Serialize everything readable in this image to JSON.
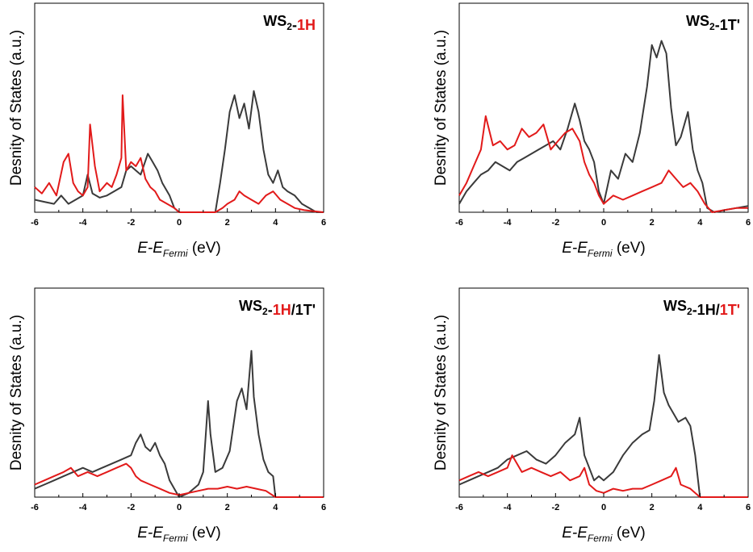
{
  "chart_data": [
    {
      "type": "line",
      "title_parts": [
        {
          "text": "WS",
          "color": "#000000"
        },
        {
          "text": "2",
          "color": "#000000",
          "sub": true
        },
        {
          "text": "-",
          "color": "#000000"
        },
        {
          "text": "1H",
          "color": "#e21a1a"
        }
      ],
      "xlabel": "E-E",
      "xlabel_sub": "Fermi",
      "xlabel_unit": "(eV)",
      "ylabel": "Desnity of States (a.u.)",
      "xlim": [
        -6,
        6
      ],
      "ylim": [
        0,
        100
      ],
      "xticks": [
        "-6",
        "-4",
        "-2",
        "0",
        "2",
        "4",
        "6"
      ],
      "series": [
        {
          "color": "#3a3a3a",
          "x": [
            -6,
            -5.6,
            -5.2,
            -4.9,
            -4.6,
            -4.3,
            -4.0,
            -3.8,
            -3.6,
            -3.3,
            -3.0,
            -2.7,
            -2.4,
            -2.2,
            -2.0,
            -1.6,
            -1.3,
            -1.1,
            -0.9,
            -0.7,
            -0.4,
            -0.2,
            0,
            1.5,
            1.7,
            1.9,
            2.1,
            2.3,
            2.5,
            2.7,
            2.9,
            3.1,
            3.3,
            3.5,
            3.7,
            3.9,
            4.1,
            4.3,
            4.5,
            4.8,
            5.1,
            5.4,
            5.7,
            6
          ],
          "y": [
            6,
            5,
            4,
            8,
            4,
            6,
            8,
            18,
            9,
            7,
            8,
            10,
            12,
            20,
            22,
            18,
            28,
            24,
            20,
            14,
            8,
            2,
            0,
            0,
            14,
            30,
            48,
            56,
            45,
            52,
            40,
            58,
            48,
            30,
            18,
            14,
            20,
            12,
            10,
            8,
            4,
            2,
            0,
            0
          ]
        },
        {
          "color": "#e21a1a",
          "x": [
            -6,
            -5.7,
            -5.4,
            -5.1,
            -4.8,
            -4.6,
            -4.4,
            -4.2,
            -4.0,
            -3.8,
            -3.7,
            -3.5,
            -3.3,
            -3.0,
            -2.8,
            -2.6,
            -2.4,
            -2.35,
            -2.2,
            -2.0,
            -1.8,
            -1.6,
            -1.4,
            -1.2,
            -1.0,
            -0.8,
            -0.5,
            -0.2,
            0,
            1.5,
            1.8,
            2.0,
            2.3,
            2.5,
            2.7,
            3.0,
            3.3,
            3.6,
            3.9,
            4.2,
            4.5,
            4.8,
            5.2,
            6
          ],
          "y": [
            12,
            9,
            14,
            8,
            24,
            28,
            14,
            10,
            8,
            12,
            42,
            22,
            10,
            14,
            12,
            18,
            26,
            56,
            20,
            24,
            22,
            26,
            16,
            12,
            10,
            6,
            4,
            2,
            0,
            0,
            2,
            4,
            6,
            10,
            8,
            6,
            4,
            8,
            10,
            6,
            4,
            2,
            1,
            0
          ]
        }
      ]
    },
    {
      "type": "line",
      "title_parts": [
        {
          "text": "WS",
          "color": "#000000"
        },
        {
          "text": "2",
          "color": "#000000",
          "sub": true
        },
        {
          "text": "-1T'",
          "color": "#000000"
        }
      ],
      "xlabel": "E-E",
      "xlabel_sub": "Fermi",
      "xlabel_unit": "(eV)",
      "ylabel": "Desnity of States (a.u.)",
      "xlim": [
        -6,
        6
      ],
      "ylim": [
        0,
        100
      ],
      "xticks": [
        "-6",
        "-4",
        "-2",
        "0",
        "2",
        "4",
        "6"
      ],
      "series": [
        {
          "color": "#3a3a3a",
          "x": [
            -6,
            -5.7,
            -5.4,
            -5.1,
            -4.8,
            -4.5,
            -4.2,
            -3.9,
            -3.6,
            -3.3,
            -3.0,
            -2.7,
            -2.4,
            -2.1,
            -1.8,
            -1.5,
            -1.2,
            -1.0,
            -0.8,
            -0.6,
            -0.4,
            -0.2,
            0,
            0.3,
            0.6,
            0.9,
            1.2,
            1.5,
            1.8,
            2.0,
            2.2,
            2.4,
            2.6,
            2.8,
            3.0,
            3.2,
            3.5,
            3.7,
            3.9,
            4.1,
            4.3,
            4.6,
            5.0,
            5.5,
            6
          ],
          "y": [
            4,
            10,
            14,
            18,
            20,
            24,
            22,
            20,
            24,
            26,
            28,
            30,
            32,
            34,
            30,
            40,
            52,
            44,
            34,
            30,
            24,
            10,
            4,
            20,
            16,
            28,
            24,
            38,
            60,
            80,
            74,
            82,
            76,
            50,
            32,
            36,
            48,
            30,
            20,
            14,
            2,
            0,
            1,
            2,
            3
          ]
        },
        {
          "color": "#e21a1a",
          "x": [
            -6,
            -5.7,
            -5.4,
            -5.1,
            -4.9,
            -4.6,
            -4.3,
            -4.0,
            -3.7,
            -3.4,
            -3.1,
            -2.8,
            -2.5,
            -2.2,
            -1.9,
            -1.6,
            -1.3,
            -1.0,
            -0.8,
            -0.6,
            -0.4,
            -0.2,
            0,
            0.4,
            0.8,
            1.2,
            1.6,
            2.0,
            2.4,
            2.7,
            3.0,
            3.3,
            3.6,
            3.9,
            4.2,
            4.5,
            5.0,
            5.5,
            6
          ],
          "y": [
            8,
            14,
            22,
            30,
            46,
            32,
            34,
            30,
            32,
            40,
            36,
            38,
            42,
            30,
            34,
            38,
            40,
            34,
            24,
            18,
            14,
            8,
            4,
            8,
            6,
            8,
            10,
            12,
            14,
            20,
            16,
            12,
            14,
            10,
            4,
            0,
            1,
            2,
            2
          ]
        }
      ]
    },
    {
      "type": "line",
      "title_parts": [
        {
          "text": "WS",
          "color": "#000000"
        },
        {
          "text": "2",
          "color": "#000000",
          "sub": true
        },
        {
          "text": "-",
          "color": "#000000"
        },
        {
          "text": "1H",
          "color": "#e21a1a"
        },
        {
          "text": "/1T'",
          "color": "#000000"
        }
      ],
      "xlabel": "E-E",
      "xlabel_sub": "Fermi",
      "xlabel_unit": "(eV)",
      "ylabel": "Desnity of States (a.u.)",
      "xlim": [
        -6,
        6
      ],
      "ylim": [
        0,
        100
      ],
      "xticks": [
        "-6",
        "-4",
        "-2",
        "0",
        "2",
        "4",
        "6"
      ],
      "series": [
        {
          "color": "#3a3a3a",
          "x": [
            -6,
            -5.6,
            -5.2,
            -4.8,
            -4.4,
            -4.0,
            -3.6,
            -3.2,
            -2.8,
            -2.4,
            -2.0,
            -1.8,
            -1.6,
            -1.4,
            -1.2,
            -1.0,
            -0.8,
            -0.6,
            -0.4,
            -0.2,
            0,
            0.4,
            0.8,
            1.0,
            1.2,
            1.3,
            1.5,
            1.8,
            2.1,
            2.4,
            2.6,
            2.8,
            3.0,
            3.1,
            3.3,
            3.5,
            3.7,
            3.9,
            4.0,
            4.5,
            5.0,
            5.5,
            6
          ],
          "y": [
            4,
            6,
            8,
            10,
            12,
            14,
            12,
            14,
            16,
            18,
            20,
            26,
            30,
            24,
            22,
            26,
            20,
            16,
            8,
            4,
            0,
            2,
            6,
            12,
            46,
            30,
            12,
            14,
            22,
            46,
            52,
            42,
            70,
            48,
            30,
            18,
            12,
            10,
            0,
            0,
            0,
            0,
            0
          ]
        },
        {
          "color": "#e21a1a",
          "x": [
            -6,
            -5.6,
            -5.2,
            -4.8,
            -4.5,
            -4.2,
            -3.8,
            -3.4,
            -3.0,
            -2.6,
            -2.2,
            -2.0,
            -1.8,
            -1.6,
            -1.2,
            -0.8,
            -0.4,
            0,
            0.4,
            0.8,
            1.2,
            1.6,
            2.0,
            2.4,
            2.8,
            3.2,
            3.6,
            4.0,
            4.5,
            5.0,
            6
          ],
          "y": [
            6,
            8,
            10,
            12,
            14,
            10,
            12,
            10,
            12,
            14,
            16,
            14,
            10,
            8,
            6,
            4,
            2,
            1,
            2,
            3,
            4,
            4,
            5,
            4,
            5,
            4,
            3,
            0,
            0,
            0,
            0
          ]
        }
      ]
    },
    {
      "type": "line",
      "title_parts": [
        {
          "text": "WS",
          "color": "#000000"
        },
        {
          "text": "2",
          "color": "#000000",
          "sub": true
        },
        {
          "text": "-1H/",
          "color": "#000000"
        },
        {
          "text": "1T'",
          "color": "#e21a1a"
        }
      ],
      "xlabel": "E-E",
      "xlabel_sub": "Fermi",
      "xlabel_unit": "(eV)",
      "ylabel": "Desnity of States (a.u.)",
      "xlim": [
        -6,
        6
      ],
      "ylim": [
        0,
        100
      ],
      "xticks": [
        "-6",
        "-4",
        "-2",
        "0",
        "2",
        "4",
        "6"
      ],
      "series": [
        {
          "color": "#3a3a3a",
          "x": [
            -6,
            -5.6,
            -5.2,
            -4.8,
            -4.4,
            -4.0,
            -3.6,
            -3.2,
            -2.8,
            -2.4,
            -2.0,
            -1.6,
            -1.2,
            -1.0,
            -0.8,
            -0.6,
            -0.4,
            -0.2,
            0,
            0.4,
            0.8,
            1.2,
            1.6,
            1.9,
            2.1,
            2.3,
            2.5,
            2.7,
            2.9,
            3.1,
            3.4,
            3.6,
            3.8,
            4.0,
            4.5,
            5.0,
            5.5,
            6
          ],
          "y": [
            6,
            8,
            10,
            12,
            14,
            18,
            20,
            22,
            18,
            16,
            20,
            26,
            30,
            38,
            20,
            14,
            8,
            10,
            8,
            12,
            20,
            26,
            30,
            32,
            46,
            68,
            50,
            44,
            40,
            36,
            38,
            34,
            20,
            0,
            0,
            0,
            0,
            0
          ]
        },
        {
          "color": "#e21a1a",
          "x": [
            -6,
            -5.6,
            -5.2,
            -4.8,
            -4.4,
            -4.0,
            -3.8,
            -3.4,
            -3.0,
            -2.6,
            -2.2,
            -1.8,
            -1.4,
            -1.0,
            -0.8,
            -0.6,
            -0.3,
            0,
            0.4,
            0.8,
            1.2,
            1.6,
            2.0,
            2.4,
            2.8,
            3.0,
            3.2,
            3.6,
            4.0,
            4.5,
            5.0,
            6
          ],
          "y": [
            8,
            10,
            12,
            10,
            12,
            14,
            20,
            12,
            14,
            12,
            10,
            12,
            8,
            10,
            14,
            6,
            3,
            2,
            4,
            3,
            4,
            4,
            6,
            8,
            10,
            14,
            6,
            4,
            0,
            0,
            0,
            0
          ]
        }
      ]
    }
  ]
}
